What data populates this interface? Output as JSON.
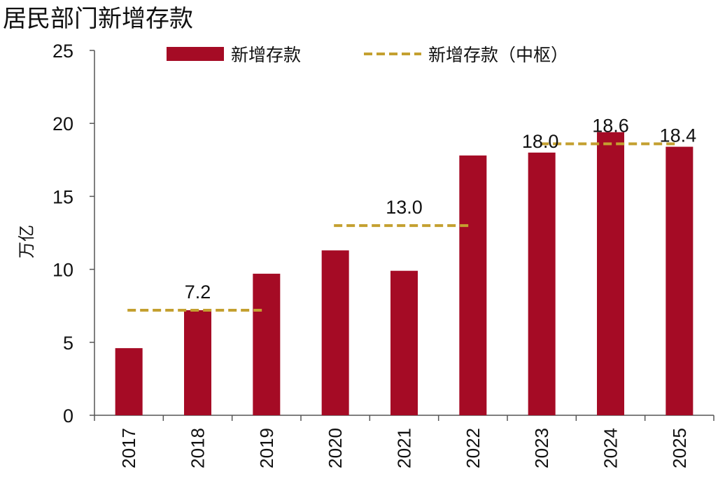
{
  "chart_data": {
    "type": "bar",
    "title": "居民部门新增存款",
    "ylabel": "万亿",
    "xlabel": "",
    "ylim": [
      0,
      25
    ],
    "yticks": [
      0,
      5,
      10,
      15,
      20,
      25
    ],
    "grid": false,
    "legend_position": "top",
    "categories": [
      "2017",
      "2018",
      "2019",
      "2020",
      "2021",
      "2022",
      "2023",
      "2024",
      "2025"
    ],
    "series": [
      {
        "name": "新增存款",
        "type": "bar",
        "color": "#A50B25",
        "values": [
          4.6,
          7.2,
          9.7,
          11.3,
          9.9,
          17.8,
          18.0,
          19.4,
          18.4
        ]
      },
      {
        "name": "新增存款（中枢）",
        "type": "dashed-line",
        "color": "#C4A030",
        "segments": [
          {
            "from": "2017",
            "to": "2019",
            "value": 7.2,
            "label": "7.2"
          },
          {
            "from": "2020",
            "to": "2022",
            "value": 13.0,
            "label": "13.0"
          },
          {
            "from": "2023",
            "to": "2025",
            "value": 18.6,
            "label": "18.6"
          }
        ]
      }
    ],
    "annotations": [
      {
        "category": "2023",
        "value": 18.0,
        "text": "18.0"
      },
      {
        "category": "2025",
        "value": 18.4,
        "text": "18.4"
      }
    ]
  }
}
